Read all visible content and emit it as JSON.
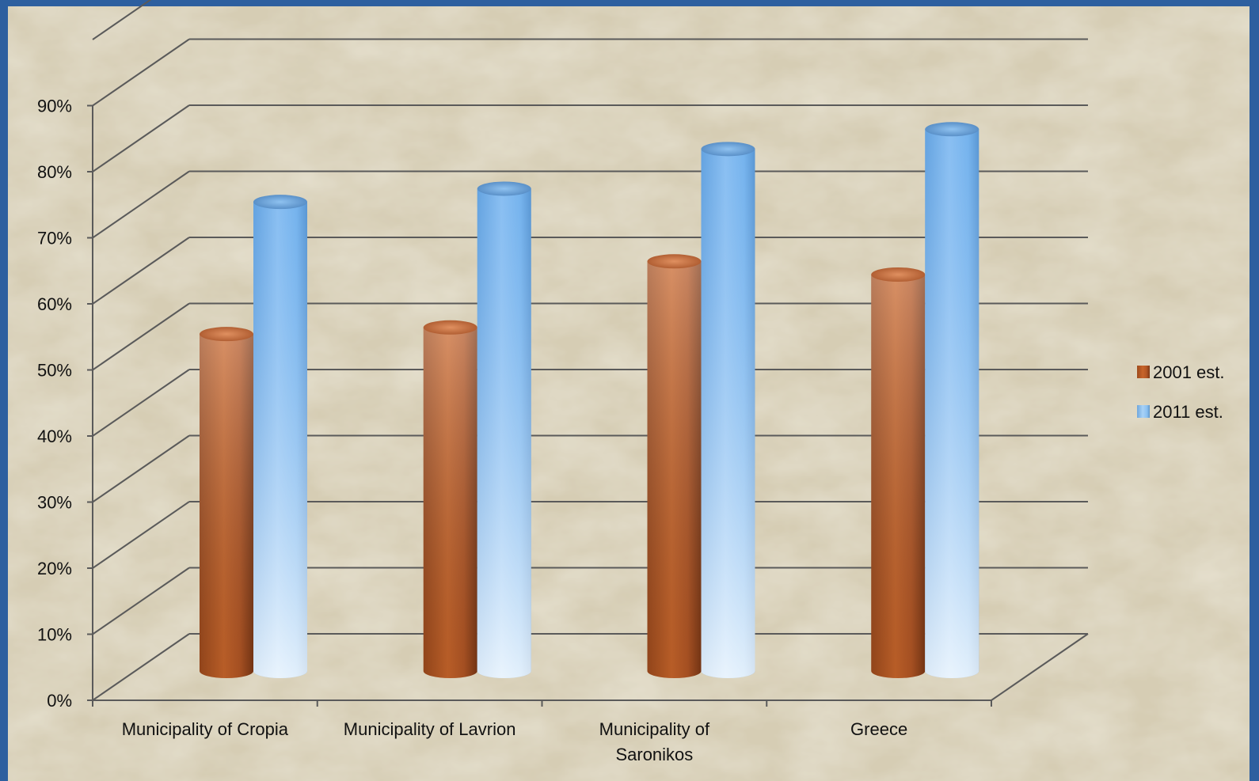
{
  "chart_data": {
    "type": "bar",
    "title": "",
    "xlabel": "",
    "ylabel": "",
    "ylim": [
      0,
      100
    ],
    "ytick_values": [
      0,
      10,
      20,
      30,
      40,
      50,
      60,
      70,
      80,
      90
    ],
    "ytick_labels": [
      "0%",
      "10%",
      "20%",
      "30%",
      "40%",
      "50%",
      "60%",
      "70%",
      "80%",
      "90%"
    ],
    "categories": [
      [
        "Municipality of Cropia"
      ],
      [
        "Municipality of Lavrion"
      ],
      [
        "Municipality of",
        "Saronikos"
      ],
      [
        "Greece"
      ]
    ],
    "series": [
      {
        "name": "2001 est.",
        "values": [
          51,
          52,
          62,
          60
        ],
        "color": "#c8652a"
      },
      {
        "name": "2011 est.",
        "values": [
          71,
          73,
          79,
          82
        ],
        "color": "#7fb8ee"
      }
    ],
    "legend_position": "right",
    "grid": true,
    "style": "3d-cylinder"
  },
  "colors": {
    "frame": "#2d5f9f",
    "background": "#d6cdb4",
    "gridline": "#5a5a5a"
  }
}
